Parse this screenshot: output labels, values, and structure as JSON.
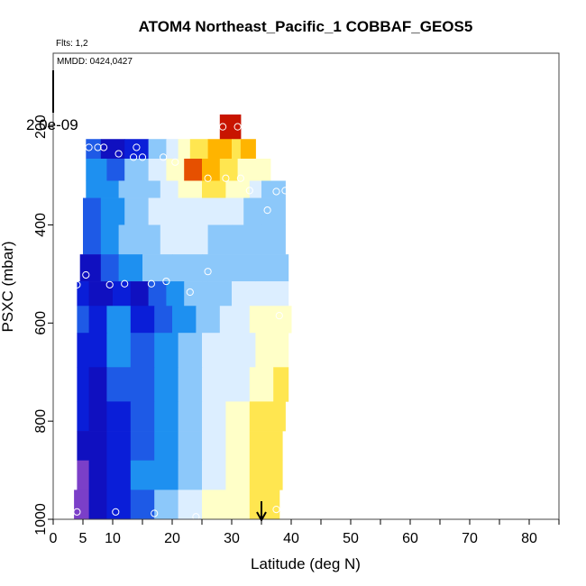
{
  "chart_data": {
    "type": "heatmap",
    "title": "ATOM4 Northeast_Pacific_1 COBBAF_GEOS5",
    "flights_label": "Flts: 1,2",
    "dates_label": "MMDD: 0424,0427",
    "scale_label": "2.0e-09",
    "xlabel": "Latitude (deg N)",
    "ylabel": "PSXC (mbar)",
    "xlim": [
      0,
      85
    ],
    "ylim": [
      1000,
      50
    ],
    "x_ticks": [
      0,
      5,
      10,
      20,
      30,
      40,
      50,
      60,
      70,
      80
    ],
    "x_tick_labels": [
      "0",
      "5",
      "10",
      "20",
      "30",
      "40",
      "50",
      "60",
      "70",
      "80"
    ],
    "x_minor_ticks": [
      15,
      25,
      35,
      45,
      55,
      65,
      75,
      85
    ],
    "y_ticks": [
      200,
      400,
      600,
      800,
      1000
    ],
    "y_tick_labels": [
      "200",
      "400",
      "600",
      "800",
      "1000"
    ],
    "colors": {
      "c0": "#7B3FC8",
      "c1": "#1010C0",
      "c2": "#0A1ED8",
      "c3": "#1E5AE6",
      "c4": "#1E90F0",
      "c5": "#8CC8FA",
      "c6": "#DCEEFF",
      "c7": "#FFFFC8",
      "c8": "#FFE650",
      "c9": "#FFB400",
      "c10": "#E65000",
      "c11": "#C81400"
    },
    "layers": [
      {
        "p_top": 175,
        "p_bot": 225,
        "segments": [
          [
            28,
            31.5,
            11
          ]
        ]
      },
      {
        "p_top": 225,
        "p_bot": 265,
        "segments": [
          [
            5.5,
            8,
            3
          ],
          [
            8,
            12,
            1
          ],
          [
            12,
            16,
            2
          ],
          [
            16,
            19,
            5
          ],
          [
            19,
            21,
            6
          ],
          [
            21,
            23,
            7
          ],
          [
            23,
            26,
            8
          ],
          [
            26,
            30,
            9
          ],
          [
            30,
            31.5,
            8
          ],
          [
            31.5,
            34,
            9
          ]
        ]
      },
      {
        "p_top": 265,
        "p_bot": 310,
        "segments": [
          [
            5.5,
            9,
            4
          ],
          [
            9,
            12,
            3
          ],
          [
            12,
            16,
            5
          ],
          [
            16,
            19,
            6
          ],
          [
            19,
            22,
            7
          ],
          [
            22,
            25,
            10
          ],
          [
            25,
            28,
            9
          ],
          [
            28,
            31,
            8
          ],
          [
            31,
            34,
            7
          ],
          [
            34,
            36.5,
            7
          ]
        ]
      },
      {
        "p_top": 310,
        "p_bot": 345,
        "segments": [
          [
            5.5,
            8,
            4
          ],
          [
            8,
            11,
            4
          ],
          [
            11,
            15,
            5
          ],
          [
            15,
            18,
            5
          ],
          [
            18,
            21,
            6
          ],
          [
            21,
            25,
            7
          ],
          [
            25,
            29,
            8
          ],
          [
            29,
            33,
            7
          ],
          [
            33,
            35,
            6
          ],
          [
            35,
            39,
            5
          ]
        ]
      },
      {
        "p_top": 345,
        "p_bot": 400,
        "segments": [
          [
            5,
            8,
            3
          ],
          [
            8,
            12,
            4
          ],
          [
            12,
            16,
            5
          ],
          [
            16,
            20,
            6
          ],
          [
            20,
            24,
            6
          ],
          [
            24,
            28,
            6
          ],
          [
            28,
            32,
            6
          ],
          [
            32,
            35,
            5
          ],
          [
            35,
            39,
            5
          ]
        ]
      },
      {
        "p_top": 400,
        "p_bot": 460,
        "segments": [
          [
            5,
            8,
            3
          ],
          [
            8,
            11,
            4
          ],
          [
            11,
            14,
            5
          ],
          [
            14,
            18,
            5
          ],
          [
            18,
            22,
            6
          ],
          [
            22,
            26,
            6
          ],
          [
            26,
            30,
            5
          ],
          [
            30,
            35,
            5
          ],
          [
            35,
            39,
            5
          ]
        ]
      },
      {
        "p_top": 460,
        "p_bot": 515,
        "segments": [
          [
            4.5,
            8,
            1
          ],
          [
            8,
            11,
            3
          ],
          [
            11,
            15,
            4
          ],
          [
            15,
            20,
            5
          ],
          [
            20,
            25,
            5
          ],
          [
            25,
            29,
            5
          ],
          [
            29,
            34,
            5
          ],
          [
            34,
            39.5,
            5
          ]
        ]
      },
      {
        "p_top": 515,
        "p_bot": 565,
        "segments": [
          [
            4,
            6,
            2
          ],
          [
            6,
            10,
            1
          ],
          [
            10,
            13,
            2
          ],
          [
            13,
            16,
            1
          ],
          [
            16,
            19,
            3
          ],
          [
            19,
            22,
            4
          ],
          [
            22,
            26,
            5
          ],
          [
            26,
            30,
            5
          ],
          [
            30,
            35,
            6
          ],
          [
            35,
            39.5,
            6
          ]
        ]
      },
      {
        "p_top": 565,
        "p_bot": 620,
        "segments": [
          [
            4,
            6,
            3
          ],
          [
            6,
            9,
            2
          ],
          [
            9,
            13,
            4
          ],
          [
            13,
            17,
            2
          ],
          [
            17,
            20,
            3
          ],
          [
            20,
            24,
            4
          ],
          [
            24,
            28,
            5
          ],
          [
            28,
            33,
            6
          ],
          [
            33,
            37,
            7
          ],
          [
            37,
            40,
            7
          ]
        ]
      },
      {
        "p_top": 620,
        "p_bot": 690,
        "segments": [
          [
            4,
            6,
            2
          ],
          [
            6,
            9,
            2
          ],
          [
            9,
            13,
            4
          ],
          [
            13,
            17,
            3
          ],
          [
            17,
            21,
            4
          ],
          [
            21,
            25,
            5
          ],
          [
            25,
            29,
            6
          ],
          [
            29,
            34,
            6
          ],
          [
            34,
            39.5,
            7
          ]
        ]
      },
      {
        "p_top": 690,
        "p_bot": 760,
        "segments": [
          [
            4,
            6,
            2
          ],
          [
            6,
            9,
            1
          ],
          [
            9,
            13,
            3
          ],
          [
            13,
            17,
            3
          ],
          [
            17,
            21,
            4
          ],
          [
            21,
            25,
            5
          ],
          [
            25,
            29,
            6
          ],
          [
            29,
            33,
            6
          ],
          [
            33,
            37,
            7
          ],
          [
            37,
            39.5,
            8
          ]
        ]
      },
      {
        "p_top": 760,
        "p_bot": 820,
        "segments": [
          [
            4,
            6,
            2
          ],
          [
            6,
            9,
            1
          ],
          [
            9,
            13,
            2
          ],
          [
            13,
            17,
            3
          ],
          [
            17,
            21,
            4
          ],
          [
            21,
            25,
            5
          ],
          [
            25,
            29,
            6
          ],
          [
            29,
            33,
            7
          ],
          [
            33,
            37,
            8
          ],
          [
            37,
            39,
            8
          ]
        ]
      },
      {
        "p_top": 820,
        "p_bot": 880,
        "segments": [
          [
            4,
            6,
            1
          ],
          [
            6,
            9,
            1
          ],
          [
            9,
            13,
            2
          ],
          [
            13,
            17,
            3
          ],
          [
            17,
            21,
            4
          ],
          [
            21,
            25,
            5
          ],
          [
            25,
            29,
            6
          ],
          [
            29,
            33,
            7
          ],
          [
            33,
            36,
            8
          ],
          [
            36,
            38.5,
            8
          ]
        ]
      },
      {
        "p_top": 880,
        "p_bot": 940,
        "segments": [
          [
            4,
            6,
            0
          ],
          [
            6,
            9,
            1
          ],
          [
            9,
            13,
            2
          ],
          [
            13,
            17,
            4
          ],
          [
            17,
            21,
            4
          ],
          [
            21,
            25,
            5
          ],
          [
            25,
            29,
            6
          ],
          [
            29,
            33,
            7
          ],
          [
            33,
            36,
            8
          ],
          [
            36,
            38.5,
            8
          ]
        ]
      },
      {
        "p_top": 940,
        "p_bot": 1000,
        "segments": [
          [
            3.5,
            6,
            0
          ],
          [
            6,
            9,
            1
          ],
          [
            9,
            13,
            2
          ],
          [
            13,
            17,
            3
          ],
          [
            17,
            21,
            5
          ],
          [
            21,
            25,
            6
          ],
          [
            25,
            29,
            7
          ],
          [
            29,
            33,
            7
          ],
          [
            33,
            36,
            8
          ],
          [
            36,
            38,
            8
          ]
        ]
      }
    ],
    "points": [
      {
        "lat": 28.5,
        "p": 200
      },
      {
        "lat": 31,
        "p": 200
      },
      {
        "lat": 6,
        "p": 242
      },
      {
        "lat": 7.5,
        "p": 242
      },
      {
        "lat": 8.5,
        "p": 242
      },
      {
        "lat": 14,
        "p": 242
      },
      {
        "lat": 11,
        "p": 255
      },
      {
        "lat": 13.5,
        "p": 262
      },
      {
        "lat": 15,
        "p": 262
      },
      {
        "lat": 18.5,
        "p": 262
      },
      {
        "lat": 20.5,
        "p": 272
      },
      {
        "lat": 26,
        "p": 305
      },
      {
        "lat": 29,
        "p": 305
      },
      {
        "lat": 31.5,
        "p": 305
      },
      {
        "lat": 33,
        "p": 330
      },
      {
        "lat": 37.5,
        "p": 332
      },
      {
        "lat": 39,
        "p": 330
      },
      {
        "lat": 36,
        "p": 370
      },
      {
        "lat": 5.5,
        "p": 502
      },
      {
        "lat": 26,
        "p": 495
      },
      {
        "lat": 4,
        "p": 522
      },
      {
        "lat": 9.5,
        "p": 522
      },
      {
        "lat": 12,
        "p": 520
      },
      {
        "lat": 16.5,
        "p": 520
      },
      {
        "lat": 19,
        "p": 515
      },
      {
        "lat": 23,
        "p": 537
      },
      {
        "lat": 38,
        "p": 585
      },
      {
        "lat": 4,
        "p": 985
      },
      {
        "lat": 10.5,
        "p": 985
      },
      {
        "lat": 17,
        "p": 988
      },
      {
        "lat": 24,
        "p": 995
      },
      {
        "lat": 37.5,
        "p": 980
      }
    ],
    "arrow_lat": 35
  }
}
